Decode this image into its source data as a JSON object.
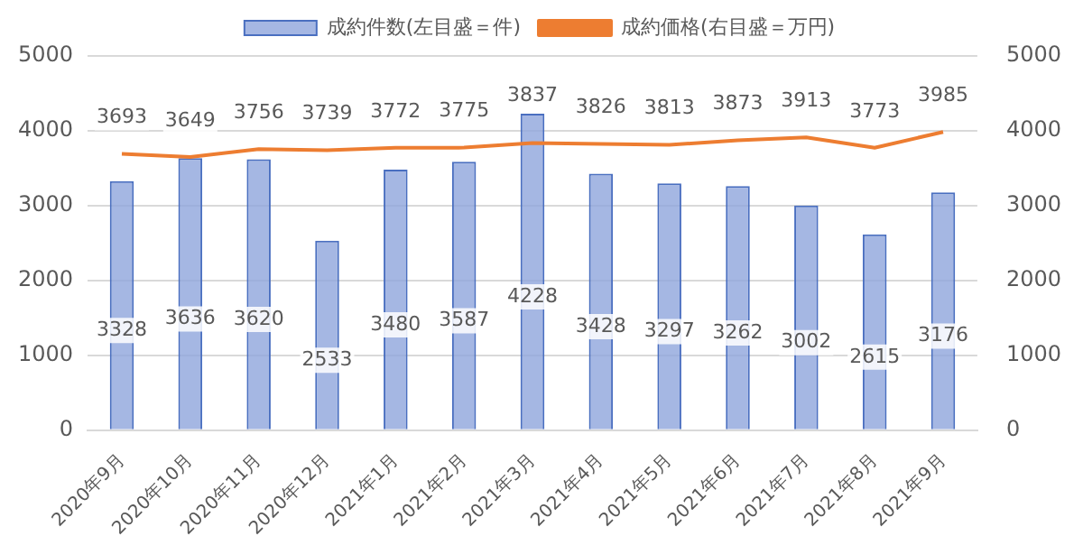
{
  "chart_data": {
    "type": "bar",
    "categories": [
      "2020年9月",
      "2020年10月",
      "2020年11月",
      "2020年12月",
      "2021年1月",
      "2021年2月",
      "2021年3月",
      "2021年4月",
      "2021年5月",
      "2021年6月",
      "2021年7月",
      "2021年8月",
      "2021年9月"
    ],
    "series": [
      {
        "name": "成約件数(左目盛＝件)",
        "color": "#8fa5dc",
        "values": [
          3328,
          3636,
          3620,
          2533,
          3480,
          3587,
          4228,
          3428,
          3297,
          3262,
          3002,
          2615,
          3176
        ]
      },
      {
        "name": "成約価格(右目盛＝万円)",
        "type": "line",
        "axis": "y2",
        "color": "#ed7d31",
        "values": [
          3693,
          3649,
          3756,
          3739,
          3772,
          3775,
          3837,
          3826,
          3813,
          3873,
          3913,
          3773,
          3985
        ]
      }
    ],
    "ylim": [
      0,
      5000
    ],
    "yticks": [
      0,
      1000,
      2000,
      3000,
      4000,
      5000
    ],
    "y2lim": [
      0,
      5000
    ],
    "y2ticks": [
      0,
      1000,
      2000,
      3000,
      4000,
      5000
    ],
    "grid": "y",
    "legend": "top",
    "marker": "none",
    "data_labels": true
  }
}
